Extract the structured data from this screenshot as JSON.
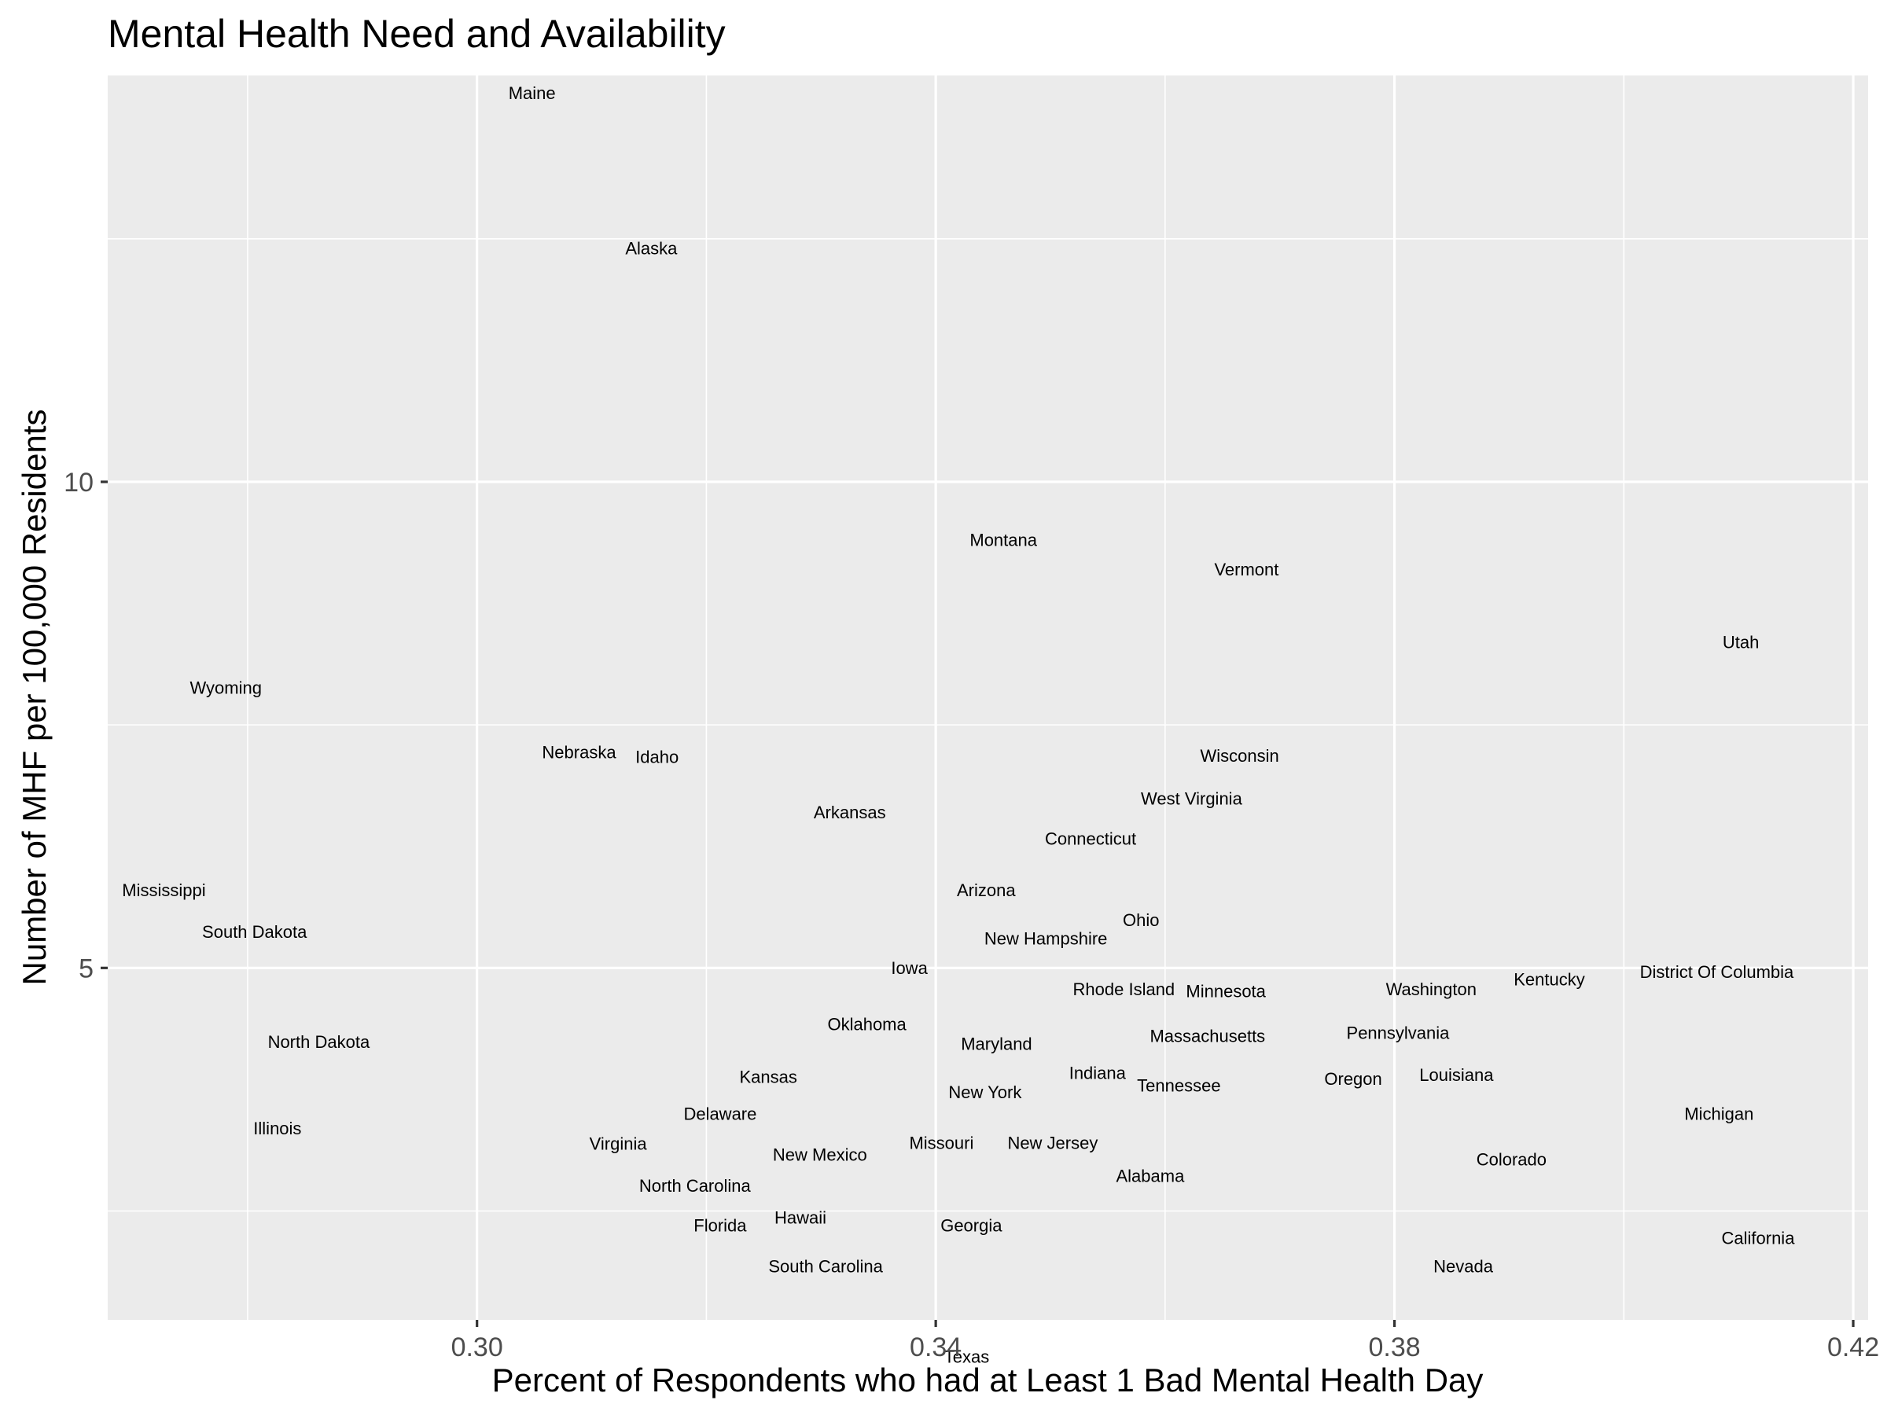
{
  "chart_data": {
    "type": "scatter",
    "title": "Mental Health Need and Availability",
    "xlabel": "Percent of Respondents who had at Least 1 Bad Mental Health Day",
    "ylabel": "Number of MHF per 100,000 Residents",
    "xlim": [
      0.2678,
      0.4213
    ],
    "ylim": [
      1.38,
      14.18
    ],
    "x_major_ticks": [
      0.3,
      0.34,
      0.38,
      0.42
    ],
    "x_tick_labels": [
      "0.30",
      "0.34",
      "0.38",
      "0.42"
    ],
    "x_minor_ticks": [
      0.28,
      0.32,
      0.36,
      0.4
    ],
    "y_major_ticks": [
      5,
      10
    ],
    "y_tick_labels": [
      "5",
      "10"
    ],
    "y_minor_ticks": [
      2.5,
      7.5,
      12.5
    ],
    "grid": true,
    "panel_color": "#ebebeb",
    "points": [
      {
        "label": "Maine",
        "x": 0.3048,
        "y": 14.0
      },
      {
        "label": "Alaska",
        "x": 0.3152,
        "y": 12.4
      },
      {
        "label": "Montana",
        "x": 0.3459,
        "y": 9.4
      },
      {
        "label": "Vermont",
        "x": 0.3671,
        "y": 9.1
      },
      {
        "label": "Utah",
        "x": 0.4102,
        "y": 8.35
      },
      {
        "label": "Wyoming",
        "x": 0.2781,
        "y": 7.88
      },
      {
        "label": "Nebraska",
        "x": 0.3089,
        "y": 7.22
      },
      {
        "label": "Idaho",
        "x": 0.3157,
        "y": 7.17
      },
      {
        "label": "Wisconsin",
        "x": 0.3665,
        "y": 7.18
      },
      {
        "label": "West Virginia",
        "x": 0.3623,
        "y": 6.74
      },
      {
        "label": "Arkansas",
        "x": 0.3325,
        "y": 6.6
      },
      {
        "label": "Connecticut",
        "x": 0.3535,
        "y": 6.33
      },
      {
        "label": "Mississippi",
        "x": 0.2727,
        "y": 5.8
      },
      {
        "label": "Arizona",
        "x": 0.3444,
        "y": 5.8
      },
      {
        "label": "Ohio",
        "x": 0.3579,
        "y": 5.49
      },
      {
        "label": "South Dakota",
        "x": 0.2806,
        "y": 5.37
      },
      {
        "label": "New Hampshire",
        "x": 0.3496,
        "y": 5.3
      },
      {
        "label": "Iowa",
        "x": 0.3377,
        "y": 5.0
      },
      {
        "label": "District Of Columbia",
        "x": 0.4081,
        "y": 4.96
      },
      {
        "label": "Kentucky",
        "x": 0.3935,
        "y": 4.88
      },
      {
        "label": "Washington",
        "x": 0.3832,
        "y": 4.78
      },
      {
        "label": "Rhode Island",
        "x": 0.3564,
        "y": 4.78
      },
      {
        "label": "Minnesota",
        "x": 0.3653,
        "y": 4.76
      },
      {
        "label": "Oklahoma",
        "x": 0.334,
        "y": 4.42
      },
      {
        "label": "Pennsylvania",
        "x": 0.3803,
        "y": 4.33
      },
      {
        "label": "Massachusetts",
        "x": 0.3637,
        "y": 4.3
      },
      {
        "label": "North Dakota",
        "x": 0.2862,
        "y": 4.24
      },
      {
        "label": "Maryland",
        "x": 0.3453,
        "y": 4.22
      },
      {
        "label": "Indiana",
        "x": 0.3541,
        "y": 3.92
      },
      {
        "label": "Louisiana",
        "x": 0.3854,
        "y": 3.9
      },
      {
        "label": "Kansas",
        "x": 0.3254,
        "y": 3.88
      },
      {
        "label": "Oregon",
        "x": 0.3764,
        "y": 3.86
      },
      {
        "label": "Tennessee",
        "x": 0.3612,
        "y": 3.79
      },
      {
        "label": "New York",
        "x": 0.3443,
        "y": 3.72
      },
      {
        "label": "Delaware",
        "x": 0.3212,
        "y": 3.5
      },
      {
        "label": "Michigan",
        "x": 0.4083,
        "y": 3.5
      },
      {
        "label": "Illinois",
        "x": 0.2826,
        "y": 3.35
      },
      {
        "label": "Virginia",
        "x": 0.3123,
        "y": 3.19
      },
      {
        "label": "Missouri",
        "x": 0.3405,
        "y": 3.2
      },
      {
        "label": "New Jersey",
        "x": 0.3502,
        "y": 3.2
      },
      {
        "label": "New Mexico",
        "x": 0.3299,
        "y": 3.08
      },
      {
        "label": "Colorado",
        "x": 0.3902,
        "y": 3.03
      },
      {
        "label": "Alabama",
        "x": 0.3587,
        "y": 2.86
      },
      {
        "label": "North Carolina",
        "x": 0.319,
        "y": 2.76
      },
      {
        "label": "Hawaii",
        "x": 0.3282,
        "y": 2.43
      },
      {
        "label": "Florida",
        "x": 0.3212,
        "y": 2.35
      },
      {
        "label": "Georgia",
        "x": 0.3431,
        "y": 2.35
      },
      {
        "label": "California",
        "x": 0.4117,
        "y": 2.22
      },
      {
        "label": "South Carolina",
        "x": 0.3304,
        "y": 1.93
      },
      {
        "label": "Nevada",
        "x": 0.386,
        "y": 1.93
      },
      {
        "label": "Texas",
        "x": 0.3427,
        "y": 1.0
      }
    ]
  }
}
